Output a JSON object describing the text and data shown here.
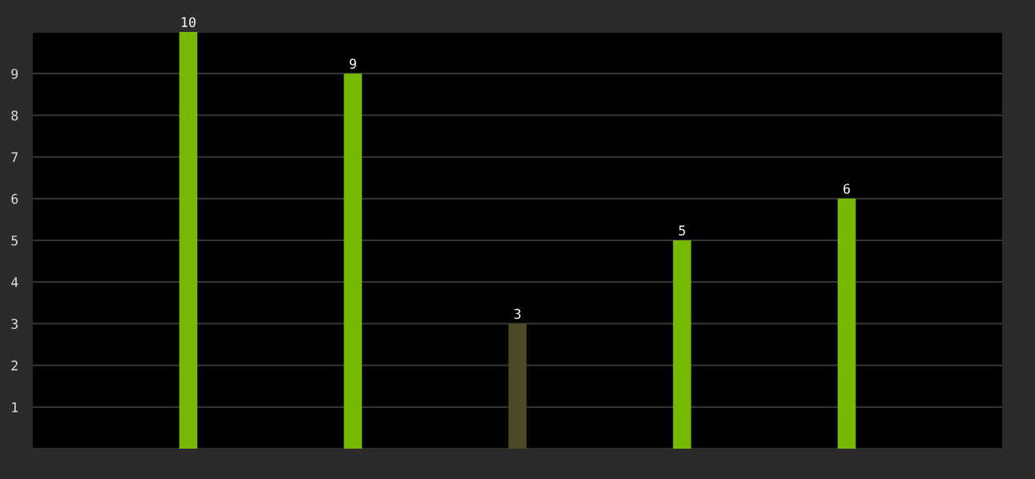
{
  "chart_data": {
    "type": "bar",
    "categories": [
      null,
      null,
      null,
      null,
      null
    ],
    "values": [
      10,
      9,
      3,
      5,
      6
    ],
    "colors": [
      "#76b900",
      "#76b900",
      "#4d4a26",
      "#76b900",
      "#76b900"
    ],
    "ylim": [
      0,
      10
    ],
    "yticks": [
      1,
      2,
      3,
      4,
      5,
      6,
      7,
      8,
      9
    ],
    "grid": "y",
    "data_labels": true,
    "tick_labels": "y"
  }
}
